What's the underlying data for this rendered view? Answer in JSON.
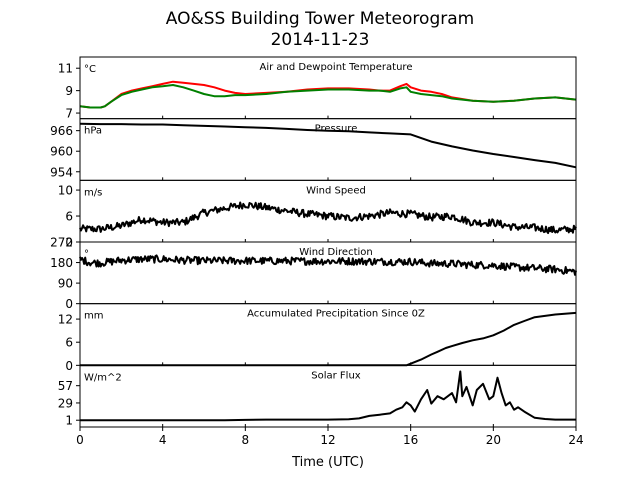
{
  "title": "AO&SS Building Tower Meteorogram",
  "subtitle": "2014-11-23",
  "chart_data": {
    "type": "line",
    "xlabel": "Time (UTC)",
    "xlim": [
      0,
      24
    ],
    "xticks": [
      0,
      4,
      8,
      12,
      16,
      20,
      24
    ],
    "panels": [
      {
        "title": "Air and Dewpoint Temperature",
        "unit": "°C",
        "ylim": [
          6.5,
          12
        ],
        "yticks": [
          7,
          9,
          11
        ],
        "series": [
          {
            "color": "#ff0000",
            "x": [
              0,
              0.5,
              1,
              1.2,
              1.5,
              2,
              2.5,
              3,
              3.5,
              4,
              4.5,
              5,
              5.5,
              6,
              6.5,
              7,
              7.5,
              8,
              9,
              10,
              11,
              12,
              13,
              14,
              14.5,
              15,
              15.5,
              15.8,
              16,
              16.5,
              17,
              17.5,
              18,
              19,
              20,
              21,
              22,
              23,
              24
            ],
            "y": [
              7.6,
              7.5,
              7.5,
              7.6,
              8.0,
              8.7,
              9.0,
              9.2,
              9.4,
              9.6,
              9.8,
              9.7,
              9.6,
              9.5,
              9.3,
              9.0,
              8.8,
              8.7,
              8.8,
              8.9,
              9.1,
              9.2,
              9.2,
              9.1,
              9.0,
              9.0,
              9.4,
              9.6,
              9.3,
              9.0,
              8.9,
              8.7,
              8.4,
              8.1,
              8.0,
              8.1,
              8.3,
              8.4,
              8.2
            ]
          },
          {
            "color": "#008000",
            "x": [
              0,
              0.5,
              1,
              1.2,
              1.5,
              2,
              2.5,
              3,
              3.5,
              4,
              4.5,
              5,
              5.5,
              6,
              6.5,
              7,
              7.5,
              8,
              9,
              10,
              11,
              12,
              13,
              14,
              14.5,
              15,
              15.5,
              15.8,
              16,
              16.5,
              17,
              17.5,
              18,
              19,
              20,
              21,
              22,
              23,
              24
            ],
            "y": [
              7.6,
              7.5,
              7.5,
              7.6,
              8.0,
              8.6,
              8.9,
              9.1,
              9.3,
              9.4,
              9.5,
              9.3,
              9.0,
              8.7,
              8.5,
              8.5,
              8.6,
              8.6,
              8.7,
              8.9,
              9.0,
              9.1,
              9.1,
              9.0,
              9.0,
              8.9,
              9.2,
              9.3,
              8.9,
              8.7,
              8.6,
              8.5,
              8.3,
              8.1,
              8.0,
              8.1,
              8.3,
              8.4,
              8.2
            ]
          }
        ]
      },
      {
        "title": "Pressure",
        "unit": "hPa",
        "ylim": [
          951.5,
          969.5
        ],
        "yticks": [
          954,
          960,
          966
        ],
        "series": [
          {
            "color": "#000000",
            "x": [
              0,
              1,
              2,
              3,
              4,
              5,
              6,
              7,
              8,
              9,
              10,
              11,
              12,
              13,
              14,
              15,
              16,
              17,
              18,
              19,
              20,
              21,
              22,
              23,
              24
            ],
            "y": [
              968.0,
              967.9,
              967.9,
              967.8,
              967.8,
              967.6,
              967.4,
              967.2,
              967.0,
              966.8,
              966.5,
              966.2,
              966.0,
              965.8,
              965.5,
              965.2,
              964.9,
              962.8,
              961.4,
              960.2,
              959.2,
              958.3,
              957.4,
              956.6,
              955.3
            ]
          }
        ]
      },
      {
        "title": "Wind Speed",
        "unit": "m/s",
        "ylim": [
          2,
          11.5
        ],
        "yticks": [
          2,
          6,
          10
        ],
        "series": [
          {
            "color": "#000000",
            "noisy": true,
            "x": [
              0,
              1,
              2,
              3,
              4,
              5,
              6,
              7,
              8,
              9,
              10,
              11,
              12,
              13,
              14,
              15,
              16,
              17,
              18,
              19,
              20,
              21,
              22,
              23,
              24
            ],
            "y": [
              4.0,
              4.0,
              4.5,
              5.5,
              5.0,
              5.0,
              6.5,
              7.2,
              7.8,
              7.3,
              6.8,
              6.3,
              6.0,
              5.7,
              6.0,
              6.5,
              6.3,
              5.8,
              6.0,
              5.0,
              5.0,
              4.3,
              4.2,
              3.8,
              4.0
            ]
          }
        ]
      },
      {
        "title": "Wind Direction",
        "unit": "°",
        "ylim": [
          0,
          270
        ],
        "yticks": [
          0,
          90,
          180,
          270
        ],
        "series": [
          {
            "color": "#000000",
            "noisy": true,
            "x": [
              0,
              0.5,
              1,
              2,
              3,
              4,
              5,
              6,
              7,
              8,
              9,
              10,
              11,
              12,
              13,
              14,
              15,
              16,
              17,
              18,
              19,
              20,
              21,
              22,
              23,
              24
            ],
            "y": [
              195,
              180,
              178,
              190,
              195,
              195,
              190,
              188,
              188,
              188,
              187,
              187,
              186,
              186,
              186,
              185,
              184,
              184,
              176,
              175,
              170,
              168,
              160,
              155,
              150,
              140
            ]
          }
        ]
      },
      {
        "title": "Accumulated Precipitation Since 0Z",
        "unit": "mm",
        "ylim": [
          0,
          16
        ],
        "yticks": [
          0,
          6,
          12
        ],
        "series": [
          {
            "color": "#000000",
            "x": [
              0,
              15.8,
              16.5,
              17,
              17.3,
              17.7,
              18,
              18.5,
              19,
              19.5,
              20,
              20.5,
              21,
              21.5,
              22,
              23,
              24
            ],
            "y": [
              0,
              0,
              1.5,
              2.8,
              3.5,
              4.5,
              5.0,
              5.8,
              6.5,
              7.0,
              7.8,
              9.0,
              10.5,
              11.5,
              12.5,
              13.2,
              13.6
            ]
          }
        ]
      },
      {
        "title": "Solar Flux",
        "unit": "W/m^2",
        "ylim": [
          -10,
          90
        ],
        "yticks": [
          1,
          29,
          57
        ],
        "series": [
          {
            "color": "#000000",
            "x": [
              0,
              4,
              7,
              8,
              9,
              12,
              13,
              13.5,
              14,
              14.5,
              15,
              15.3,
              15.6,
              15.8,
              16,
              16.2,
              16.5,
              16.8,
              17,
              17.3,
              17.6,
              18,
              18.2,
              18.4,
              18.5,
              18.7,
              19,
              19.2,
              19.5,
              19.8,
              20,
              20.2,
              20.4,
              20.6,
              20.8,
              21,
              21.2,
              21.5,
              22,
              22.5,
              23,
              24
            ],
            "y": [
              1,
              1,
              1,
              1.5,
              2,
              2,
              2.5,
              4,
              8,
              10,
              12,
              18,
              22,
              30,
              25,
              15,
              35,
              50,
              28,
              40,
              35,
              45,
              30,
              80,
              40,
              55,
              25,
              50,
              60,
              35,
              40,
              70,
              45,
              25,
              30,
              18,
              22,
              15,
              5,
              3,
              2,
              2
            ]
          }
        ]
      }
    ]
  }
}
